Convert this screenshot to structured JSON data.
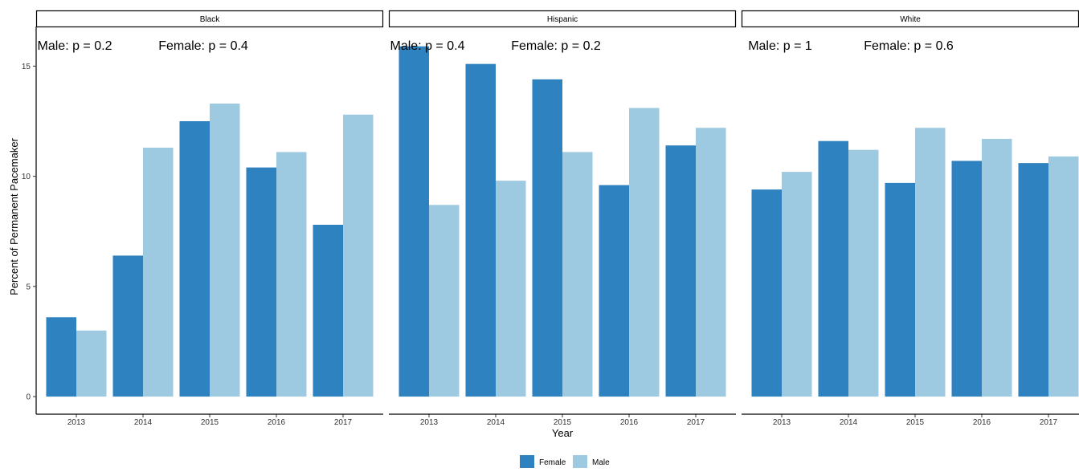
{
  "chart_data": {
    "type": "bar",
    "ylabel": "Percent of Permanent Pacemaker",
    "xlabel": "Year",
    "ylim": [
      -0.8,
      16.8
    ],
    "yticks": [
      0,
      5,
      10,
      15
    ],
    "categories": [
      "2013",
      "2014",
      "2015",
      "2016",
      "2017"
    ],
    "legend_position": "bottom",
    "legend": [
      {
        "name": "Female",
        "color": "#2E82BF"
      },
      {
        "name": "Male",
        "color": "#9ECAE1"
      }
    ],
    "panels": [
      {
        "strip": "Black",
        "annotation_male": "Male: p = 0.2",
        "annotation_female": "Female: p = 0.4",
        "series": [
          {
            "name": "Female",
            "values": [
              3.6,
              6.4,
              12.5,
              10.4,
              7.8
            ]
          },
          {
            "name": "Male",
            "values": [
              3.0,
              11.3,
              13.3,
              11.1,
              12.8
            ]
          }
        ]
      },
      {
        "strip": "Hispanic",
        "annotation_male": "Male: p = 0.4",
        "annotation_female": "Female: p = 0.2",
        "series": [
          {
            "name": "Female",
            "values": [
              15.9,
              15.1,
              14.4,
              9.6,
              11.4
            ]
          },
          {
            "name": "Male",
            "values": [
              8.7,
              9.8,
              11.1,
              13.1,
              12.2
            ]
          }
        ]
      },
      {
        "strip": "White",
        "annotation_male": "Male: p = 1",
        "annotation_female": "Female: p = 0.6",
        "series": [
          {
            "name": "Female",
            "values": [
              9.4,
              11.6,
              9.7,
              10.7,
              10.6
            ]
          },
          {
            "name": "Male",
            "values": [
              10.2,
              11.2,
              12.2,
              11.7,
              10.9
            ]
          }
        ]
      }
    ]
  }
}
